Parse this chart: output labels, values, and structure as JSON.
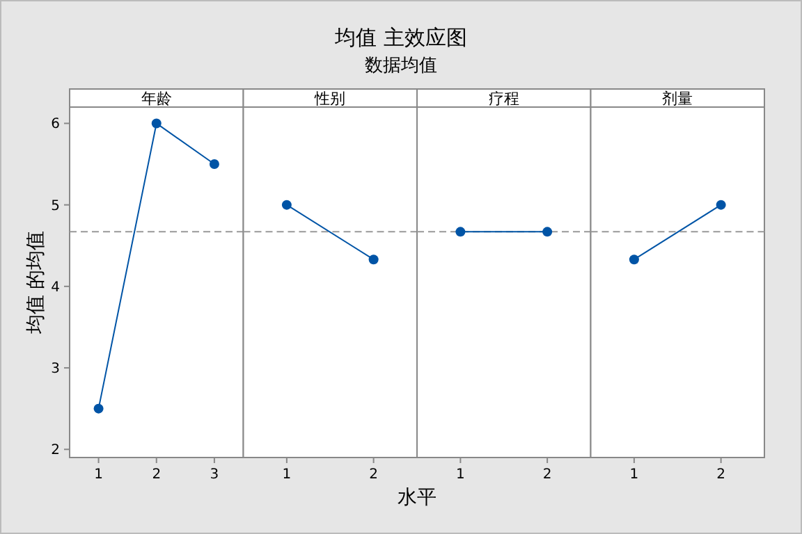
{
  "chart_data": [
    {
      "type": "line",
      "title": "年龄",
      "ylabel": "均值 的均值",
      "x": [
        1,
        2,
        3
      ],
      "values": [
        2.5,
        6.0,
        5.5
      ],
      "color": "#0054a6",
      "marker": "circle",
      "xlim": [
        0.5,
        3.5
      ],
      "xticks": [
        1,
        2,
        3
      ],
      "ylim": [
        1.9,
        6.2
      ],
      "yticks": [
        2,
        3,
        4,
        5,
        6
      ],
      "ref_lines": [
        {
          "axis": "y",
          "value": 4.67,
          "color": "#999999",
          "line_style": "dashed"
        }
      ]
    },
    {
      "type": "line",
      "title": "性别",
      "annotations": [
        "均值 主效应图",
        "数据均值"
      ],
      "xlabel": "水平",
      "x": [
        1,
        2
      ],
      "values": [
        5.0,
        4.33
      ],
      "color": "#0054a6",
      "marker": "circle",
      "xlim": [
        0.5,
        2.5
      ],
      "xticks": [
        1,
        2
      ],
      "ylim": [
        1.9,
        6.2
      ],
      "tick_labels": "x",
      "ref_lines": [
        {
          "axis": "y",
          "value": 4.67,
          "color": "#999999",
          "line_style": "dashed"
        }
      ]
    },
    {
      "type": "line",
      "title": "疗程",
      "x": [
        1,
        2
      ],
      "values": [
        4.67,
        4.67
      ],
      "color": "#0054a6",
      "marker": "circle",
      "xlim": [
        0.5,
        2.5
      ],
      "xticks": [
        1,
        2
      ],
      "ylim": [
        1.9,
        6.2
      ],
      "tick_labels": "x",
      "ref_lines": [
        {
          "axis": "y",
          "value": 4.67,
          "color": "#999999",
          "line_style": "dashed"
        }
      ]
    },
    {
      "type": "line",
      "title": "剂量",
      "x": [
        1,
        2
      ],
      "values": [
        4.33,
        5.0
      ],
      "color": "#0054a6",
      "marker": "circle",
      "xlim": [
        0.5,
        2.5
      ],
      "xticks": [
        1,
        2
      ],
      "ylim": [
        1.9,
        6.2
      ],
      "tick_labels": "x",
      "ref_lines": [
        {
          "axis": "y",
          "value": 4.67,
          "color": "#999999",
          "line_style": "dashed"
        }
      ]
    }
  ]
}
